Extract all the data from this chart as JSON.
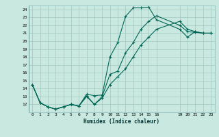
{
  "title": "",
  "xlabel": "Humidex (Indice chaleur)",
  "xlim": [
    -0.5,
    23.5
  ],
  "ylim": [
    11,
    24.5
  ],
  "yticks": [
    12,
    13,
    14,
    15,
    16,
    17,
    18,
    19,
    20,
    21,
    22,
    23,
    24
  ],
  "xticks": [
    0,
    1,
    2,
    3,
    4,
    5,
    6,
    7,
    8,
    9,
    10,
    11,
    12,
    13,
    14,
    15,
    16,
    19,
    20,
    21,
    22,
    23
  ],
  "bg_color": "#c8e8e0",
  "line_color": "#006655",
  "grid_color": "#a0c8c0",
  "line1_x": [
    0,
    1,
    2,
    3,
    4,
    5,
    6,
    7,
    8,
    9,
    10,
    11,
    12,
    13,
    14,
    15,
    16,
    19,
    20,
    21,
    22,
    23
  ],
  "line1_y": [
    14.5,
    12.2,
    11.7,
    11.4,
    11.7,
    12.0,
    11.8,
    13.3,
    13.1,
    13.2,
    18.0,
    19.8,
    23.1,
    24.2,
    24.2,
    24.3,
    22.7,
    21.5,
    20.5,
    21.2,
    21.0,
    21.0
  ],
  "line2_x": [
    0,
    1,
    2,
    3,
    4,
    5,
    6,
    7,
    8,
    9,
    10,
    11,
    12,
    13,
    14,
    15,
    16,
    19,
    20,
    21,
    22,
    23
  ],
  "line2_y": [
    14.5,
    12.2,
    11.7,
    11.4,
    11.7,
    12.0,
    11.8,
    13.1,
    12.0,
    13.0,
    15.8,
    16.2,
    18.5,
    19.8,
    21.5,
    22.5,
    23.2,
    22.0,
    21.2,
    21.1,
    21.0,
    21.0
  ],
  "line3_x": [
    0,
    1,
    2,
    3,
    4,
    5,
    6,
    7,
    8,
    9,
    10,
    11,
    12,
    13,
    14,
    15,
    16,
    19,
    20,
    21,
    22,
    23
  ],
  "line3_y": [
    14.5,
    12.2,
    11.7,
    11.4,
    11.7,
    12.0,
    11.8,
    13.0,
    12.0,
    12.8,
    14.5,
    15.5,
    16.5,
    18.0,
    19.5,
    20.5,
    21.5,
    22.5,
    21.5,
    21.2,
    21.0,
    21.0
  ]
}
